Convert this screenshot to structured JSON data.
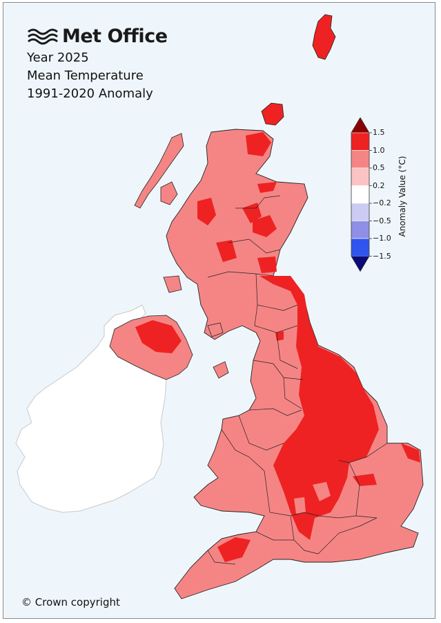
{
  "header": {
    "brand": "Met Office",
    "title_year": "Year 2025",
    "title_variable": "Mean Temperature",
    "title_baseline": "1991-2020 Anomaly"
  },
  "legend": {
    "title": "Anomaly Value (°C)",
    "ticks": [
      "1.5",
      "1.0",
      "0.5",
      "0.2",
      "−0.2",
      "−0.5",
      "−1.0",
      "−1.5"
    ],
    "bins": [
      {
        "range": "> 1.5",
        "color": "#8b0000"
      },
      {
        "range": "1.0 to 1.5",
        "color": "#ee2222"
      },
      {
        "range": "0.5 to 1.0",
        "color": "#f58585"
      },
      {
        "range": "0.2 to 0.5",
        "color": "#fbc3c3"
      },
      {
        "range": "-0.2 to 0.2",
        "color": "#ffffff"
      },
      {
        "range": "-0.5 to -0.2",
        "color": "#cbcbf3"
      },
      {
        "range": "-1.0 to -0.5",
        "color": "#8f8fe8"
      },
      {
        "range": "-1.5 to -1.0",
        "color": "#2f55ee"
      },
      {
        "range": "< -1.5",
        "color": "#0a0a7a"
      }
    ]
  },
  "map": {
    "region": "United Kingdom",
    "ireland_color": "#ffffff",
    "background_color": "#eef6fb",
    "predominant_anomaly_class": "0.5 to 1.0",
    "hotspot_class": "1.0 to 1.5"
  },
  "footer": {
    "copyright": "© Crown copyright"
  }
}
